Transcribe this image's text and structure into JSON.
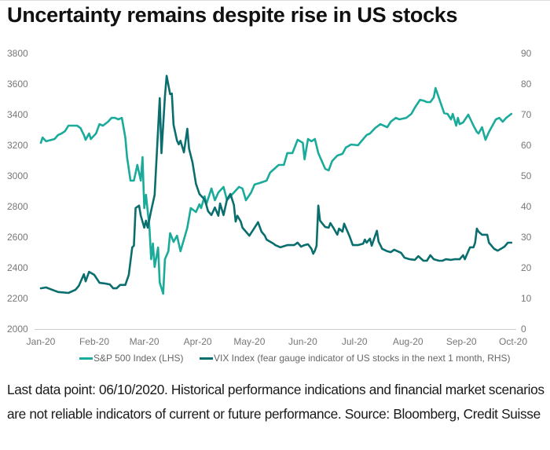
{
  "header": {
    "title": "Uncertainty remains despite rise in US stocks"
  },
  "footnote": "Last data point: 06/10/2020. Historical performance indications and financial market scenarios are not reliable indicators of current or future performance. Source: Bloomberg, Credit Suisse",
  "colors": {
    "sp500": "#1aab9b",
    "vix": "#0b6e6e",
    "axis": "#cccccc",
    "tick_text": "#777777"
  },
  "chart_data": {
    "type": "line",
    "title": "Uncertainty remains despite rise in US stocks",
    "xlabel": "",
    "ylabel_left": "S&P 500 Index",
    "ylabel_right": "VIX Index",
    "x_range": [
      "2020-01-01",
      "2020-10-01"
    ],
    "x_tick_dates": [
      "2020-01-01",
      "2020-02-01",
      "2020-03-01",
      "2020-04-01",
      "2020-05-01",
      "2020-06-01",
      "2020-07-01",
      "2020-08-01",
      "2020-09-01",
      "2020-10-01"
    ],
    "x_tick_labels": [
      "Jan-20",
      "Feb-20",
      "Mar-20",
      "Apr-20",
      "May-20",
      "Jun-20",
      "Jul-20",
      "Aug-20",
      "Sep-20",
      "Oct-20"
    ],
    "ylim_left": [
      2000,
      3800
    ],
    "y_ticks_left": [
      2000,
      2200,
      2400,
      2600,
      2800,
      3000,
      3200,
      3400,
      3600,
      3800
    ],
    "ylim_right": [
      0,
      90
    ],
    "y_ticks_right": [
      0,
      10,
      20,
      30,
      40,
      50,
      60,
      70,
      80,
      90
    ],
    "grid": false,
    "legend_position": "bottom",
    "series": [
      {
        "name": "S&P 500 Index (LHS)",
        "axis": "left",
        "color": "#1aab9b",
        "points": [
          [
            "2020-01-01",
            3216
          ],
          [
            "2020-01-02",
            3251
          ],
          [
            "2020-01-04",
            3226
          ],
          [
            "2020-01-09",
            3241
          ],
          [
            "2020-01-11",
            3267
          ],
          [
            "2020-01-13",
            3277
          ],
          [
            "2020-01-15",
            3292
          ],
          [
            "2020-01-17",
            3328
          ],
          [
            "2020-01-22",
            3328
          ],
          [
            "2020-01-24",
            3313
          ],
          [
            "2020-01-26",
            3267
          ],
          [
            "2020-01-27",
            3236
          ],
          [
            "2020-01-29",
            3277
          ],
          [
            "2020-01-30",
            3241
          ],
          [
            "2020-02-02",
            3277
          ],
          [
            "2020-02-04",
            3338
          ],
          [
            "2020-02-06",
            3328
          ],
          [
            "2020-02-09",
            3354
          ],
          [
            "2020-02-11",
            3379
          ],
          [
            "2020-02-13",
            3379
          ],
          [
            "2020-02-15",
            3369
          ],
          [
            "2020-02-17",
            3379
          ],
          [
            "2020-02-19",
            3251
          ],
          [
            "2020-02-20",
            3123
          ],
          [
            "2020-02-22",
            2969
          ],
          [
            "2020-02-24",
            2969
          ],
          [
            "2020-02-26",
            3072
          ],
          [
            "2020-02-28",
            2969
          ],
          [
            "2020-02-29",
            3123
          ],
          [
            "2020-03-01",
            2790
          ],
          [
            "2020-03-02",
            2877
          ],
          [
            "2020-03-04",
            2662
          ],
          [
            "2020-03-05",
            2456
          ],
          [
            "2020-03-06",
            2559
          ],
          [
            "2020-03-07",
            2405
          ],
          [
            "2020-03-09",
            2533
          ],
          [
            "2020-03-10",
            2303
          ],
          [
            "2020-03-12",
            2231
          ],
          [
            "2020-03-13",
            2456
          ],
          [
            "2020-03-15",
            2508
          ],
          [
            "2020-03-16",
            2626
          ],
          [
            "2020-03-18",
            2569
          ],
          [
            "2020-03-20",
            2610
          ],
          [
            "2020-03-22",
            2508
          ],
          [
            "2020-03-24",
            2585
          ],
          [
            "2020-03-26",
            2662
          ],
          [
            "2020-03-28",
            2790
          ],
          [
            "2020-03-31",
            2764
          ],
          [
            "2020-04-02",
            2815
          ],
          [
            "2020-04-03",
            2790
          ],
          [
            "2020-04-05",
            2867
          ],
          [
            "2020-04-06",
            2815
          ],
          [
            "2020-04-09",
            2918
          ],
          [
            "2020-04-11",
            2841
          ],
          [
            "2020-04-13",
            2892
          ],
          [
            "2020-04-16",
            2928
          ],
          [
            "2020-04-18",
            2841
          ],
          [
            "2020-04-20",
            2867
          ],
          [
            "2020-04-22",
            2892
          ],
          [
            "2020-04-25",
            2928
          ],
          [
            "2020-04-27",
            2918
          ],
          [
            "2020-04-29",
            2841
          ],
          [
            "2020-05-02",
            2892
          ],
          [
            "2020-05-04",
            2944
          ],
          [
            "2020-05-07",
            2954
          ],
          [
            "2020-05-11",
            2969
          ],
          [
            "2020-05-13",
            3021
          ],
          [
            "2020-05-18",
            3072
          ],
          [
            "2020-05-21",
            3072
          ],
          [
            "2020-05-23",
            3149
          ],
          [
            "2020-05-26",
            3149
          ],
          [
            "2020-05-29",
            3236
          ],
          [
            "2020-06-01",
            3216
          ],
          [
            "2020-06-02",
            3108
          ],
          [
            "2020-06-04",
            3241
          ],
          [
            "2020-06-06",
            3226
          ],
          [
            "2020-06-08",
            3241
          ],
          [
            "2020-06-10",
            3149
          ],
          [
            "2020-06-14",
            3046
          ],
          [
            "2020-06-16",
            3036
          ],
          [
            "2020-06-18",
            3097
          ],
          [
            "2020-06-21",
            3133
          ],
          [
            "2020-06-24",
            3144
          ],
          [
            "2020-06-26",
            3185
          ],
          [
            "2020-06-29",
            3205
          ],
          [
            "2020-07-03",
            3200
          ],
          [
            "2020-07-08",
            3267
          ],
          [
            "2020-07-10",
            3277
          ],
          [
            "2020-07-13",
            3313
          ],
          [
            "2020-07-16",
            3338
          ],
          [
            "2020-07-20",
            3318
          ],
          [
            "2020-07-22",
            3354
          ],
          [
            "2020-07-25",
            3379
          ],
          [
            "2020-07-27",
            3369
          ],
          [
            "2020-07-31",
            3379
          ],
          [
            "2020-08-03",
            3405
          ],
          [
            "2020-08-05",
            3446
          ],
          [
            "2020-08-08",
            3497
          ],
          [
            "2020-08-10",
            3492
          ],
          [
            "2020-08-12",
            3482
          ],
          [
            "2020-08-14",
            3482
          ],
          [
            "2020-08-16",
            3513
          ],
          [
            "2020-08-17",
            3574
          ],
          [
            "2020-08-19",
            3508
          ],
          [
            "2020-08-22",
            3410
          ],
          [
            "2020-08-24",
            3405
          ],
          [
            "2020-08-26",
            3369
          ],
          [
            "2020-08-27",
            3405
          ],
          [
            "2020-08-29",
            3328
          ],
          [
            "2020-08-30",
            3379
          ],
          [
            "2020-08-31",
            3338
          ],
          [
            "2020-09-02",
            3349
          ],
          [
            "2020-09-05",
            3400
          ],
          [
            "2020-09-08",
            3328
          ],
          [
            "2020-09-10",
            3287
          ],
          [
            "2020-09-11",
            3277
          ],
          [
            "2020-09-13",
            3318
          ],
          [
            "2020-09-15",
            3236
          ],
          [
            "2020-09-17",
            3287
          ],
          [
            "2020-09-19",
            3328
          ],
          [
            "2020-09-21",
            3369
          ],
          [
            "2020-09-23",
            3379
          ],
          [
            "2020-09-25",
            3354
          ],
          [
            "2020-09-27",
            3379
          ],
          [
            "2020-09-30",
            3405
          ]
        ]
      },
      {
        "name": "VIX Index (fear gauge indicator of US stocks in the next 1 month, RHS)",
        "axis": "right",
        "color": "#0b6e6e",
        "points": [
          [
            "2020-01-01",
            13.3
          ],
          [
            "2020-01-04",
            13.6
          ],
          [
            "2020-01-11",
            12.1
          ],
          [
            "2020-01-17",
            11.8
          ],
          [
            "2020-01-21",
            12.8
          ],
          [
            "2020-01-23",
            14.1
          ],
          [
            "2020-01-26",
            17.9
          ],
          [
            "2020-01-27",
            15.6
          ],
          [
            "2020-01-29",
            18.7
          ],
          [
            "2020-02-01",
            17.7
          ],
          [
            "2020-02-04",
            15.1
          ],
          [
            "2020-02-07",
            14.9
          ],
          [
            "2020-02-10",
            14.6
          ],
          [
            "2020-02-12",
            13.3
          ],
          [
            "2020-02-14",
            13.3
          ],
          [
            "2020-02-16",
            14.4
          ],
          [
            "2020-02-19",
            14.4
          ],
          [
            "2020-02-21",
            17.7
          ],
          [
            "2020-02-23",
            26.7
          ],
          [
            "2020-02-24",
            27.2
          ],
          [
            "2020-02-25",
            39.5
          ],
          [
            "2020-02-27",
            40.3
          ],
          [
            "2020-02-28",
            37.0
          ],
          [
            "2020-03-01",
            33.1
          ],
          [
            "2020-03-02",
            35.4
          ],
          [
            "2020-03-03",
            33.1
          ],
          [
            "2020-03-05",
            38.7
          ],
          [
            "2020-03-07",
            43.8
          ],
          [
            "2020-03-10",
            75.4
          ],
          [
            "2020-03-11",
            57.4
          ],
          [
            "2020-03-13",
            75.9
          ],
          [
            "2020-03-14",
            82.7
          ],
          [
            "2020-03-16",
            76.7
          ],
          [
            "2020-03-17",
            76.9
          ],
          [
            "2020-03-18",
            66.7
          ],
          [
            "2020-03-20",
            61.5
          ],
          [
            "2020-03-21",
            60.3
          ],
          [
            "2020-03-22",
            61.5
          ],
          [
            "2020-03-24",
            57.7
          ],
          [
            "2020-03-26",
            65.4
          ],
          [
            "2020-03-27",
            58.9
          ],
          [
            "2020-03-29",
            54.4
          ],
          [
            "2020-03-31",
            47.4
          ],
          [
            "2020-04-02",
            44.1
          ],
          [
            "2020-04-05",
            42.3
          ],
          [
            "2020-04-06",
            40.5
          ],
          [
            "2020-04-07",
            38.5
          ],
          [
            "2020-04-09",
            37.2
          ],
          [
            "2020-04-11",
            39.7
          ],
          [
            "2020-04-13",
            37.0
          ],
          [
            "2020-04-14",
            41.0
          ],
          [
            "2020-04-16",
            37.2
          ],
          [
            "2020-04-18",
            42.3
          ],
          [
            "2020-04-20",
            44.1
          ],
          [
            "2020-04-22",
            40.5
          ],
          [
            "2020-04-23",
            35.1
          ],
          [
            "2020-04-24",
            37.0
          ],
          [
            "2020-04-26",
            35.1
          ],
          [
            "2020-04-27",
            33.1
          ],
          [
            "2020-04-29",
            31.8
          ],
          [
            "2020-05-01",
            30.5
          ],
          [
            "2020-05-04",
            33.1
          ],
          [
            "2020-05-06",
            34.9
          ],
          [
            "2020-05-08",
            31.8
          ],
          [
            "2020-05-10",
            30.5
          ],
          [
            "2020-05-11",
            29.2
          ],
          [
            "2020-05-15",
            27.9
          ],
          [
            "2020-05-16",
            27.4
          ],
          [
            "2020-05-19",
            26.7
          ],
          [
            "2020-05-23",
            27.4
          ],
          [
            "2020-05-27",
            27.4
          ],
          [
            "2020-05-29",
            28.2
          ],
          [
            "2020-05-31",
            26.9
          ],
          [
            "2020-06-02",
            27.4
          ],
          [
            "2020-06-04",
            27.7
          ],
          [
            "2020-06-06",
            26.2
          ],
          [
            "2020-06-07",
            24.6
          ],
          [
            "2020-06-08",
            25.6
          ],
          [
            "2020-06-09",
            27.2
          ],
          [
            "2020-06-10",
            40.3
          ],
          [
            "2020-06-11",
            35.4
          ],
          [
            "2020-06-14",
            33.3
          ],
          [
            "2020-06-16",
            33.1
          ],
          [
            "2020-06-17",
            34.6
          ],
          [
            "2020-06-19",
            32.8
          ],
          [
            "2020-06-21",
            30.8
          ],
          [
            "2020-06-22",
            32.8
          ],
          [
            "2020-06-24",
            31.8
          ],
          [
            "2020-06-25",
            34.4
          ],
          [
            "2020-06-28",
            30.5
          ],
          [
            "2020-06-30",
            27.4
          ],
          [
            "2020-07-03",
            27.4
          ],
          [
            "2020-07-06",
            27.9
          ],
          [
            "2020-07-07",
            29.2
          ],
          [
            "2020-07-08",
            28.2
          ],
          [
            "2020-07-10",
            29.5
          ],
          [
            "2020-07-11",
            27.2
          ],
          [
            "2020-07-13",
            30.5
          ],
          [
            "2020-07-14",
            32.1
          ],
          [
            "2020-07-15",
            28.5
          ],
          [
            "2020-07-16",
            27.4
          ],
          [
            "2020-07-17",
            26.2
          ],
          [
            "2020-07-20",
            25.4
          ],
          [
            "2020-07-22",
            25.1
          ],
          [
            "2020-07-24",
            25.9
          ],
          [
            "2020-07-26",
            25.4
          ],
          [
            "2020-07-28",
            24.9
          ],
          [
            "2020-07-30",
            23.3
          ],
          [
            "2020-08-02",
            22.8
          ],
          [
            "2020-08-05",
            22.6
          ],
          [
            "2020-08-07",
            23.8
          ],
          [
            "2020-08-10",
            22.3
          ],
          [
            "2020-08-12",
            22.3
          ],
          [
            "2020-08-14",
            24.1
          ],
          [
            "2020-08-16",
            22.8
          ],
          [
            "2020-08-19",
            22.3
          ],
          [
            "2020-08-21",
            22.3
          ],
          [
            "2020-08-23",
            22.8
          ],
          [
            "2020-08-26",
            22.6
          ],
          [
            "2020-08-28",
            22.8
          ],
          [
            "2020-08-29",
            22.8
          ],
          [
            "2020-08-31",
            22.8
          ],
          [
            "2020-09-02",
            24.1
          ],
          [
            "2020-09-03",
            22.8
          ],
          [
            "2020-09-06",
            26.7
          ],
          [
            "2020-09-08",
            26.7
          ],
          [
            "2020-09-09",
            28.2
          ],
          [
            "2020-09-10",
            32.8
          ],
          [
            "2020-09-11",
            31.8
          ],
          [
            "2020-09-13",
            30.8
          ],
          [
            "2020-09-16",
            30.8
          ],
          [
            "2020-09-17",
            28.2
          ],
          [
            "2020-09-20",
            26.2
          ],
          [
            "2020-09-22",
            25.6
          ],
          [
            "2020-09-24",
            26.2
          ],
          [
            "2020-09-26",
            26.9
          ],
          [
            "2020-09-28",
            28.2
          ],
          [
            "2020-09-30",
            28.2
          ]
        ]
      }
    ]
  }
}
